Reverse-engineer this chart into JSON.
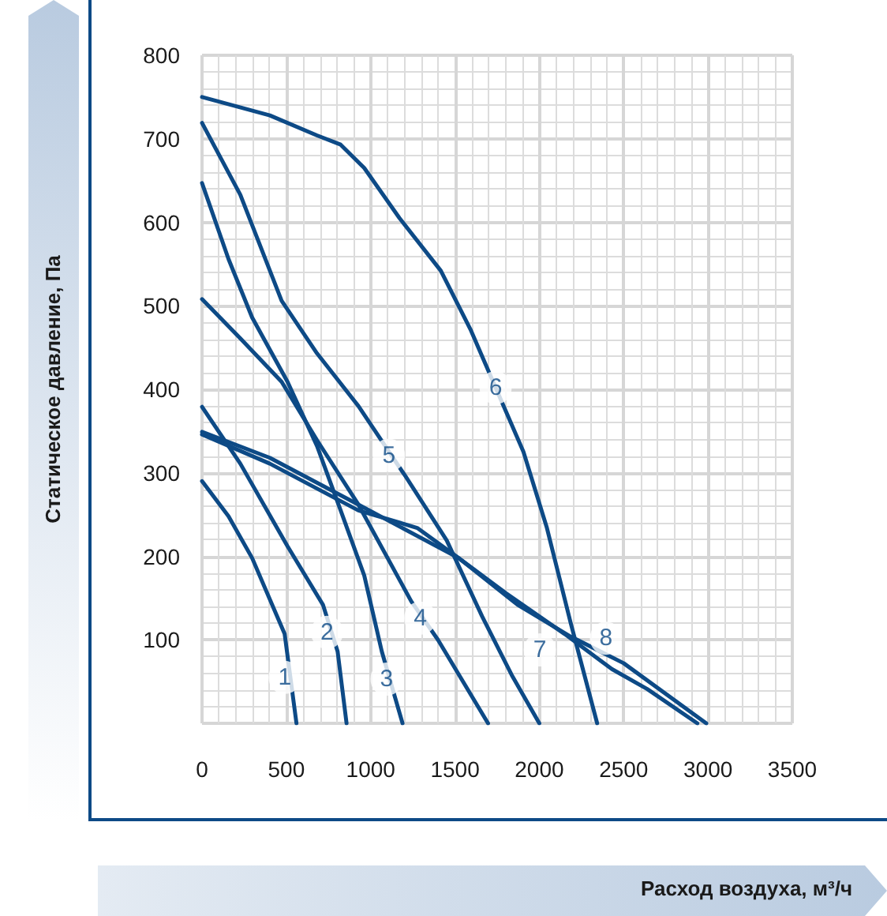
{
  "chart_data": {
    "type": "line",
    "xlabel": "Расход воздуха, м³/ч",
    "ylabel": "Статическое давление, Па",
    "xlim": [
      0,
      3500
    ],
    "xticks": [
      0,
      500,
      1000,
      1500,
      2000,
      2500,
      3000,
      3500
    ],
    "ylim": [
      0,
      800
    ],
    "yticks": [
      {
        "value": 0,
        "label": null
      },
      100,
      200,
      300,
      400,
      500,
      600,
      700,
      800
    ],
    "grid": true,
    "marker": "none",
    "line_style": "solid",
    "series": [
      {
        "color": "#0d4a86",
        "x": [
          0,
          157,
          297,
          490,
          560
        ],
        "values": [
          290,
          248,
          198,
          107,
          0
        ]
      },
      {
        "color": "#0d4a86",
        "x": [
          0,
          227,
          507,
          717,
          804,
          857
        ],
        "values": [
          379,
          311,
          212,
          142,
          86,
          0
        ]
      },
      {
        "color": "#0d4a86",
        "x": [
          0,
          157,
          297,
          507,
          682,
          822,
          962,
          1066,
          1189
        ],
        "values": [
          647,
          556,
          486,
          409,
          332,
          255,
          177,
          86,
          0
        ]
      },
      {
        "color": "#0d4a86",
        "x": [
          0,
          227,
          472,
          682,
          927,
          1241,
          1399,
          1696
        ],
        "values": [
          508,
          461,
          409,
          339,
          262,
          146,
          100,
          0
        ]
      },
      {
        "color": "#0d4a86",
        "x": [
          0,
          227,
          472,
          682,
          927,
          1206,
          1451,
          1661,
          1836,
          2000
        ],
        "values": [
          719,
          633,
          506,
          443,
          380,
          296,
          219,
          128,
          58,
          0
        ]
      },
      {
        "color": "#0d4a86",
        "x": [
          0,
          402,
          682,
          822,
          962,
          1171,
          1416,
          1591,
          1906,
          2045,
          2185,
          2343
        ],
        "values": [
          750,
          728,
          704,
          693,
          665,
          605,
          542,
          472,
          325,
          234,
          121,
          0
        ]
      },
      {
        "color": "#0d4a86",
        "x": [
          0,
          402,
          927,
          1276,
          1521,
          1801,
          2150,
          2430,
          2640,
          2937
        ],
        "values": [
          346,
          311,
          255,
          234,
          198,
          156,
          107,
          65,
          41,
          0
        ]
      },
      {
        "color": "#0d4a86",
        "x": [
          0,
          402,
          927,
          1521,
          1871,
          2185,
          2500,
          2990
        ],
        "values": [
          349,
          318,
          262,
          198,
          142,
          104,
          72,
          0
        ]
      }
    ],
    "annotations": [
      {
        "text": "1",
        "x": 490,
        "y": 55
      },
      {
        "text": "2",
        "x": 741,
        "y": 109
      },
      {
        "text": "3",
        "x": 1094,
        "y": 53
      },
      {
        "text": "4",
        "x": 1294,
        "y": 126
      },
      {
        "text": "5",
        "x": 1108,
        "y": 321
      },
      {
        "text": "6",
        "x": 1741,
        "y": 402
      },
      {
        "text": "7",
        "x": 2003,
        "y": 88
      },
      {
        "text": "8",
        "x": 2395,
        "y": 102
      }
    ]
  }
}
